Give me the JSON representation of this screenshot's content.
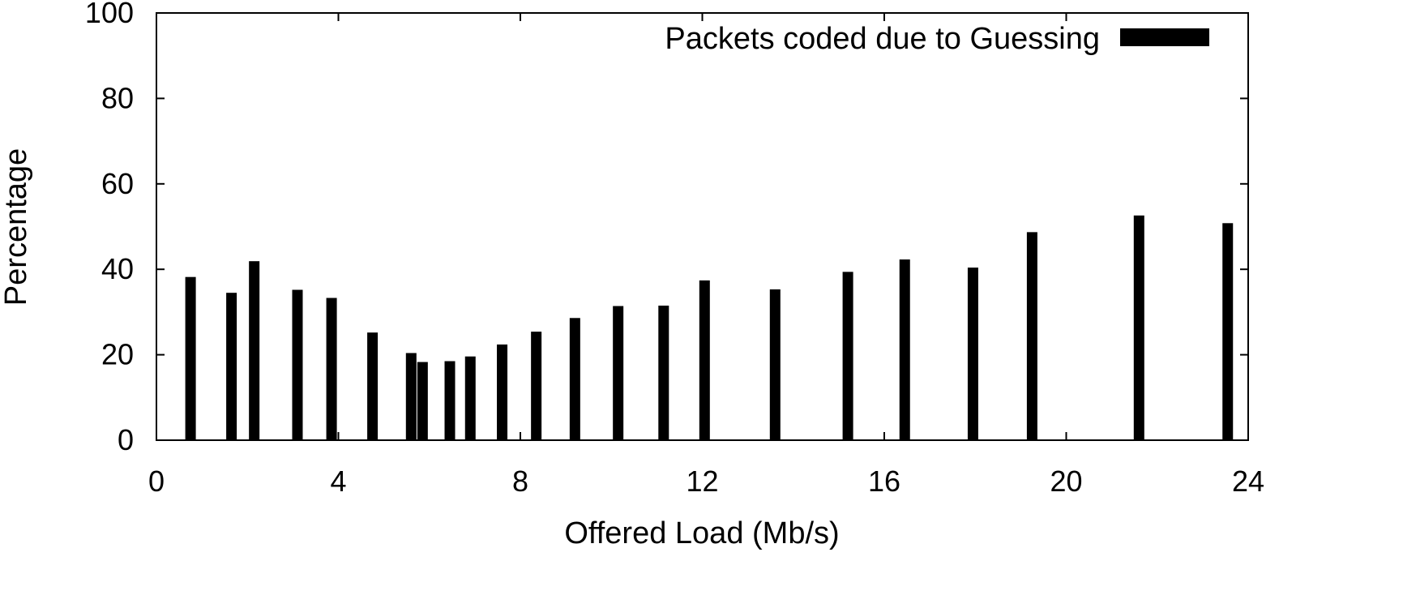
{
  "chart_data": {
    "type": "bar",
    "xlabel": "Offered Load (Mb/s)",
    "ylabel": "Percentage",
    "xlim": [
      0,
      24
    ],
    "ylim": [
      0,
      100
    ],
    "xticks": [
      0,
      4,
      8,
      12,
      16,
      20,
      24
    ],
    "yticks": [
      0,
      20,
      40,
      60,
      80,
      100
    ],
    "grid": false,
    "legend_position": "top-right",
    "series": [
      {
        "name": "Packets coded due to Guessing",
        "color": "#000000",
        "points": [
          {
            "x": 0.75,
            "y": 38.2
          },
          {
            "x": 1.65,
            "y": 34.5
          },
          {
            "x": 2.15,
            "y": 41.9
          },
          {
            "x": 3.1,
            "y": 35.2
          },
          {
            "x": 3.85,
            "y": 33.3
          },
          {
            "x": 4.75,
            "y": 25.2
          },
          {
            "x": 5.6,
            "y": 20.4
          },
          {
            "x": 5.85,
            "y": 18.3
          },
          {
            "x": 6.45,
            "y": 18.5
          },
          {
            "x": 6.9,
            "y": 19.6
          },
          {
            "x": 7.6,
            "y": 22.4
          },
          {
            "x": 8.35,
            "y": 25.4
          },
          {
            "x": 9.2,
            "y": 28.6
          },
          {
            "x": 10.15,
            "y": 31.4
          },
          {
            "x": 11.15,
            "y": 31.5
          },
          {
            "x": 12.05,
            "y": 37.4
          },
          {
            "x": 13.6,
            "y": 35.3
          },
          {
            "x": 15.2,
            "y": 39.4
          },
          {
            "x": 16.45,
            "y": 42.3
          },
          {
            "x": 17.95,
            "y": 40.4
          },
          {
            "x": 19.25,
            "y": 48.7
          },
          {
            "x": 21.6,
            "y": 52.6
          },
          {
            "x": 23.55,
            "y": 50.8
          }
        ]
      }
    ]
  }
}
